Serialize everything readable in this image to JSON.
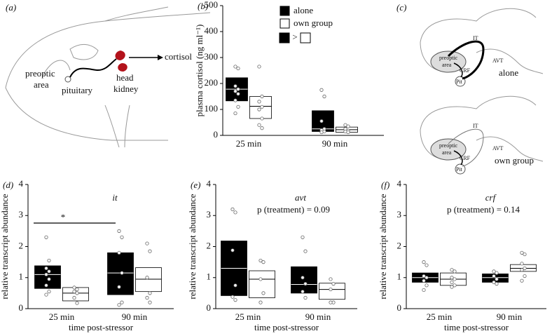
{
  "diagrams": {
    "a": {
      "panel": "(a)",
      "labels": [
        "preoptic",
        "area",
        "pituitary",
        "head",
        "kidney",
        "cortisol"
      ]
    },
    "c": {
      "panel": "(c)",
      "labels": [
        "IT",
        "AVT",
        "preoptic",
        "area",
        "CRF",
        "Pit",
        "alone",
        "IT",
        "AVT",
        "preoptic",
        "area",
        "CRF",
        "Pit",
        "own group"
      ]
    }
  },
  "chart_data": [
    {
      "type": "box",
      "panel": "(b)",
      "ylabel": "plasma cortisol (ng ml⁻¹)",
      "categories": [
        "25 min",
        "90 min"
      ],
      "ylim": [
        0,
        500
      ],
      "yticks": [
        0,
        100,
        200,
        300,
        400,
        500
      ],
      "legend": true,
      "annotation": ">",
      "annotation_kind": "comparison",
      "series": [
        {
          "name": "alone",
          "color": "#000000",
          "low": [
            133,
            15
          ],
          "high": [
            222,
            95
          ],
          "median": [
            178,
            25
          ],
          "points": [
            [
              265,
              258,
              190,
              178,
              170,
              160,
              135,
              110,
              85
            ],
            [
              175,
              150,
              55,
              25,
              20,
              15,
              12
            ]
          ]
        },
        {
          "name": "own group",
          "color": "#ffffff",
          "low": [
            65,
            12
          ],
          "high": [
            150,
            32
          ],
          "median": [
            112,
            22
          ],
          "points": [
            [
              265,
              150,
              130,
              110,
              100,
              65,
              40,
              28
            ],
            [
              40,
              35,
              25,
              18,
              15,
              12
            ]
          ]
        }
      ]
    },
    {
      "type": "box",
      "panel": "(d)",
      "title": "it",
      "ylabel": "relative transcript abundance",
      "xlabel": "time post-stressor",
      "categories": [
        "25 min",
        "90 min"
      ],
      "ylim": [
        0,
        4
      ],
      "yticks": [
        0,
        1,
        2,
        3,
        4
      ],
      "annotation": "*",
      "annotation_kind": "bracket",
      "series": [
        {
          "color": "#000000",
          "low": [
            0.65,
            0.45
          ],
          "high": [
            1.38,
            1.8
          ],
          "median": [
            1.1,
            1.15
          ],
          "points": [
            [
              2.3,
              1.55,
              1.3,
              1.2,
              1.1,
              0.95,
              0.75,
              0.55,
              0.45
            ],
            [
              2.5,
              2.3,
              1.8,
              1.15,
              0.7,
              0.2,
              0.12
            ]
          ]
        },
        {
          "color": "#ffffff",
          "low": [
            0.25,
            0.55
          ],
          "high": [
            0.68,
            1.32
          ],
          "median": [
            0.5,
            0.95
          ],
          "points": [
            [
              0.68,
              0.62,
              0.55,
              0.5,
              0.35,
              0.18
            ],
            [
              2.1,
              1.85,
              1.0,
              0.5,
              0.35,
              0.2
            ]
          ]
        }
      ]
    },
    {
      "type": "box",
      "panel": "(e)",
      "title": "avt",
      "ylabel": "relative transcript abundance",
      "xlabel": "time post-stressor",
      "categories": [
        "25 min",
        "90 min"
      ],
      "ylim": [
        0,
        4
      ],
      "yticks": [
        0,
        1,
        2,
        3,
        4
      ],
      "annotation": "p (treatment) = 0.09",
      "annotation_kind": "text",
      "series": [
        {
          "color": "#000000",
          "low": [
            0.42,
            0.5
          ],
          "high": [
            2.18,
            1.35
          ],
          "median": [
            1.3,
            0.78
          ],
          "points": [
            [
              3.2,
              3.1,
              1.88,
              0.75,
              0.38,
              0.28
            ],
            [
              2.3,
              1.85,
              1.0,
              0.8,
              0.55,
              0.35
            ]
          ]
        },
        {
          "color": "#ffffff",
          "low": [
            0.35,
            0.3
          ],
          "high": [
            1.22,
            0.82
          ],
          "median": [
            0.95,
            0.62
          ],
          "points": [
            [
              1.55,
              1.5,
              0.95,
              0.5,
              0.2
            ],
            [
              0.95,
              0.8,
              0.62,
              0.2,
              0.2
            ]
          ]
        }
      ]
    },
    {
      "type": "box",
      "panel": "(f)",
      "title": "crf",
      "ylabel": "relative transcript abundance",
      "xlabel": "time post-stressor",
      "categories": [
        "25 min",
        "90 min"
      ],
      "ylim": [
        0,
        4
      ],
      "yticks": [
        0,
        1,
        2,
        3,
        4
      ],
      "annotation": "p (treatment) = 0.14",
      "annotation_kind": "text",
      "series": [
        {
          "color": "#000000",
          "low": [
            0.85,
            0.85
          ],
          "high": [
            1.15,
            1.12
          ],
          "median": [
            1.0,
            1.0
          ],
          "points": [
            [
              1.5,
              1.4,
              1.05,
              1.0,
              0.9,
              0.75,
              0.6
            ],
            [
              1.2,
              1.15,
              1.05,
              0.95,
              0.85,
              0.8
            ]
          ]
        },
        {
          "color": "#ffffff",
          "low": [
            0.75,
            1.2
          ],
          "high": [
            1.15,
            1.42
          ],
          "median": [
            0.95,
            1.3
          ],
          "points": [
            [
              1.25,
              1.2,
              1.0,
              0.95,
              0.85,
              0.75,
              0.7
            ],
            [
              1.8,
              1.75,
              1.45,
              1.3,
              1.25,
              1.05,
              0.9
            ]
          ]
        }
      ]
    }
  ]
}
